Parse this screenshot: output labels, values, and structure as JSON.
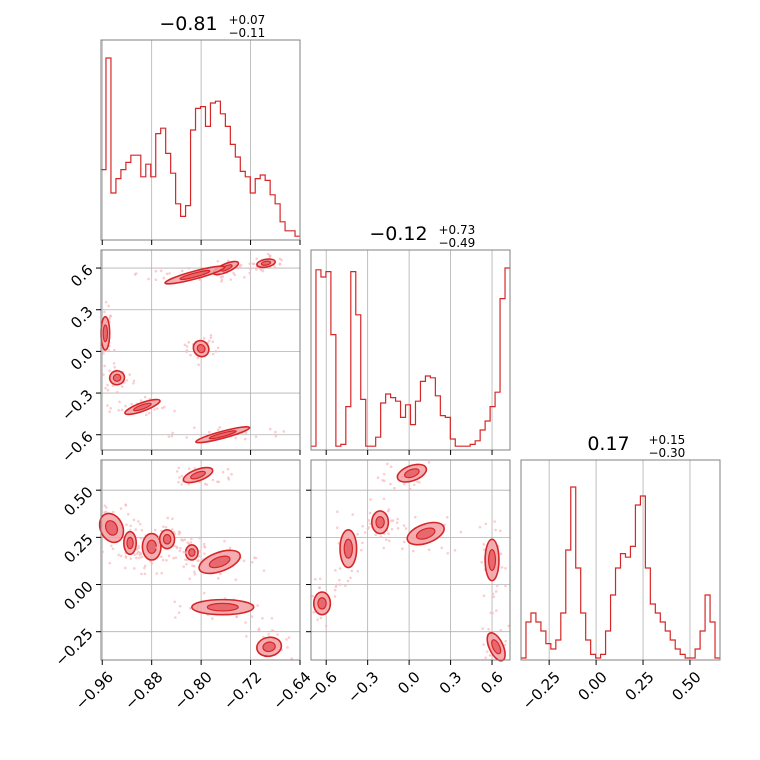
{
  "chart_data": {
    "type": "corner",
    "parameters": [
      {
        "title_value": "−0.81",
        "title_plus": "+0.07",
        "title_minus": "−0.11"
      },
      {
        "title_value": "−0.12",
        "title_plus": "+0.73",
        "title_minus": "−0.49"
      },
      {
        "title_value": "0.17",
        "title_plus": "+0.15",
        "title_minus": "−0.30"
      }
    ],
    "ranges": [
      [
        -0.962,
        -0.64
      ],
      [
        -0.71,
        0.73
      ],
      [
        -0.4,
        0.66
      ]
    ],
    "ticks": [
      {
        "values": [
          -0.96,
          -0.88,
          -0.8,
          -0.72,
          -0.64
        ],
        "labels": [
          "−0.96",
          "−0.88",
          "−0.80",
          "−0.72",
          "−0.64"
        ]
      },
      {
        "values": [
          -0.6,
          -0.3,
          0.0,
          0.3,
          0.6
        ],
        "labels": [
          "−0.6",
          "−0.3",
          "0.0",
          "0.3",
          "0.6"
        ]
      },
      {
        "values": [
          -0.25,
          0.0,
          0.25,
          0.5
        ],
        "labels": [
          "−0.25",
          "0.00",
          "0.25",
          "0.50"
        ]
      }
    ],
    "histograms": [
      {
        "bins": 40,
        "counts": [
          0.38,
          1.0,
          0.25,
          0.33,
          0.38,
          0.42,
          0.46,
          0.46,
          0.34,
          0.41,
          0.34,
          0.58,
          0.61,
          0.47,
          0.36,
          0.19,
          0.12,
          0.18,
          0.6,
          0.72,
          0.73,
          0.62,
          0.75,
          0.76,
          0.69,
          0.62,
          0.52,
          0.45,
          0.37,
          0.34,
          0.25,
          0.33,
          0.35,
          0.32,
          0.24,
          0.19,
          0.09,
          0.04,
          0.04,
          0.01
        ]
      },
      {
        "bins": 40,
        "counts": [
          0.01,
          0.99,
          0.95,
          0.98,
          0.63,
          0.01,
          0.02,
          0.23,
          0.98,
          0.74,
          0.27,
          0.01,
          0.01,
          0.06,
          0.25,
          0.3,
          0.28,
          0.26,
          0.17,
          0.24,
          0.13,
          0.26,
          0.37,
          0.4,
          0.39,
          0.29,
          0.18,
          0.17,
          0.05,
          0.01,
          0.01,
          0.01,
          0.02,
          0.04,
          0.1,
          0.15,
          0.23,
          0.31,
          0.83,
          1.0
        ]
      },
      {
        "bins": 40,
        "counts": [
          0.0,
          0.2,
          0.25,
          0.2,
          0.15,
          0.08,
          0.05,
          0.1,
          0.25,
          0.6,
          0.95,
          0.5,
          0.25,
          0.1,
          0.02,
          0.0,
          0.02,
          0.15,
          0.35,
          0.5,
          0.58,
          0.56,
          0.62,
          0.85,
          0.9,
          0.5,
          0.3,
          0.25,
          0.2,
          0.15,
          0.1,
          0.05,
          0.02,
          0.0,
          0.0,
          0.05,
          0.15,
          0.35,
          0.2,
          0.0
        ]
      }
    ],
    "pairs": [
      {
        "x_param": 0,
        "y_param": 1,
        "blobs": [
          {
            "cx": -0.76,
            "cy": 0.6,
            "rx": 0.022,
            "ry": 0.03,
            "angle": -23
          },
          {
            "cx": -0.81,
            "cy": 0.55,
            "rx": 0.05,
            "ry": 0.028,
            "angle": -15
          },
          {
            "cx": -0.695,
            "cy": 0.635,
            "rx": 0.015,
            "ry": 0.028,
            "angle": -10
          },
          {
            "cx": -0.955,
            "cy": 0.13,
            "rx": 0.007,
            "ry": 0.12,
            "angle": 0
          },
          {
            "cx": -0.8,
            "cy": 0.02,
            "rx": 0.012,
            "ry": 0.06,
            "angle": -35
          },
          {
            "cx": -0.936,
            "cy": -0.19,
            "rx": 0.012,
            "ry": 0.05,
            "angle": -10
          },
          {
            "cx": -0.895,
            "cy": -0.4,
            "rx": 0.03,
            "ry": 0.03,
            "angle": -20
          },
          {
            "cx": -0.765,
            "cy": -0.6,
            "rx": 0.045,
            "ry": 0.025,
            "angle": -15
          }
        ]
      },
      {
        "x_param": 0,
        "y_param": 2,
        "blobs": [
          {
            "cx": -0.805,
            "cy": 0.58,
            "rx": 0.025,
            "ry": 0.03,
            "angle": -20
          },
          {
            "cx": -0.945,
            "cy": 0.3,
            "rx": 0.018,
            "ry": 0.08,
            "angle": -25
          },
          {
            "cx": -0.915,
            "cy": 0.22,
            "rx": 0.01,
            "ry": 0.06,
            "angle": 0
          },
          {
            "cx": -0.88,
            "cy": 0.2,
            "rx": 0.015,
            "ry": 0.07,
            "angle": 0
          },
          {
            "cx": -0.855,
            "cy": 0.24,
            "rx": 0.012,
            "ry": 0.05,
            "angle": 0
          },
          {
            "cx": -0.815,
            "cy": 0.17,
            "rx": 0.01,
            "ry": 0.04,
            "angle": 0
          },
          {
            "cx": -0.77,
            "cy": 0.12,
            "rx": 0.035,
            "ry": 0.05,
            "angle": -20
          },
          {
            "cx": -0.765,
            "cy": -0.12,
            "rx": 0.05,
            "ry": 0.04,
            "angle": 0
          },
          {
            "cx": -0.69,
            "cy": -0.33,
            "rx": 0.02,
            "ry": 0.05,
            "angle": -10
          }
        ]
      },
      {
        "x_param": 1,
        "y_param": 2,
        "blobs": [
          {
            "cx": 0.02,
            "cy": 0.59,
            "rx": 0.11,
            "ry": 0.04,
            "angle": -20
          },
          {
            "cx": -0.44,
            "cy": 0.19,
            "rx": 0.06,
            "ry": 0.1,
            "angle": 0
          },
          {
            "cx": -0.21,
            "cy": 0.33,
            "rx": 0.06,
            "ry": 0.06,
            "angle": 0
          },
          {
            "cx": 0.12,
            "cy": 0.27,
            "rx": 0.14,
            "ry": 0.05,
            "angle": -20
          },
          {
            "cx": 0.6,
            "cy": 0.13,
            "rx": 0.05,
            "ry": 0.11,
            "angle": 0
          },
          {
            "cx": -0.63,
            "cy": -0.1,
            "rx": 0.06,
            "ry": 0.06,
            "angle": 0
          },
          {
            "cx": 0.63,
            "cy": -0.33,
            "rx": 0.05,
            "ry": 0.08,
            "angle": -25
          }
        ]
      }
    ],
    "color": "#d62728",
    "grid": true
  }
}
